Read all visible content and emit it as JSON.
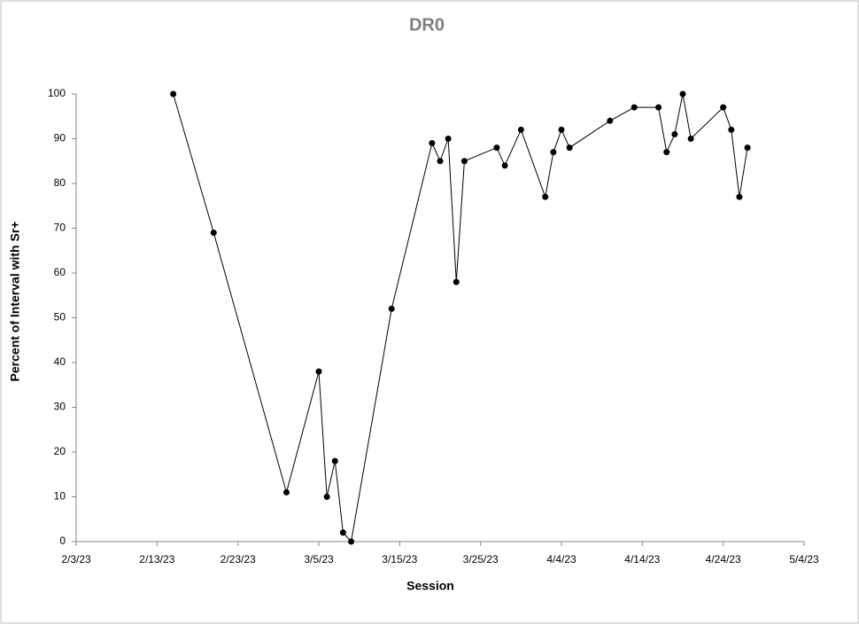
{
  "chart_data": {
    "type": "line",
    "title": "DR0",
    "x_label": "Session",
    "y_label": "Percent of Interval with Sr+",
    "x": [
      "2/15/23",
      "2/20/23",
      "3/1/23",
      "3/5/23",
      "3/6/23",
      "3/7/23",
      "3/8/23",
      "3/9/23",
      "3/14/23",
      "3/19/23",
      "3/20/23",
      "3/21/23",
      "3/22/23",
      "3/23/23",
      "3/27/23",
      "3/28/23",
      "3/30/23",
      "4/2/23",
      "4/3/23",
      "4/4/23",
      "4/5/23",
      "4/10/23",
      "4/13/23",
      "4/16/23",
      "4/17/23",
      "4/18/23",
      "4/19/23",
      "4/20/23",
      "4/24/23",
      "4/25/23",
      "4/26/23",
      "4/27/23"
    ],
    "series": [
      {
        "color": "#000000",
        "values": [
          100,
          69,
          11,
          38,
          10,
          18,
          2,
          0,
          52,
          89,
          85,
          90,
          58,
          85,
          88,
          84,
          92,
          77,
          87,
          92,
          88,
          94,
          97,
          97,
          87,
          91,
          100,
          90,
          97,
          92,
          77,
          88
        ]
      }
    ],
    "xlim": [
      "2/3/23",
      "5/4/23"
    ],
    "xticks": [
      "2/3/23",
      "2/13/23",
      "2/23/23",
      "3/5/23",
      "3/15/23",
      "3/25/23",
      "4/4/23",
      "4/14/23",
      "4/24/23",
      "5/4/23"
    ],
    "ylim": [
      0,
      100
    ],
    "yticks": [
      0,
      10,
      20,
      30,
      40,
      50,
      60,
      70,
      80,
      90,
      100
    ],
    "grid": false
  }
}
